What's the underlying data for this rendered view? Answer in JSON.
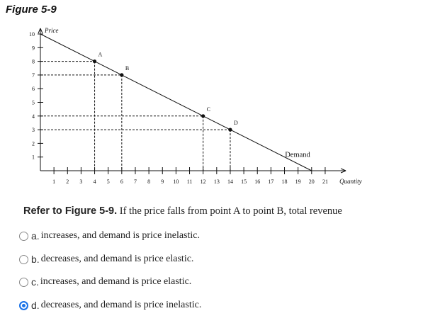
{
  "figure_title": "Figure 5-9",
  "chart_data": {
    "type": "line",
    "y_axis_label": "Price",
    "x_axis_label": "Quantity",
    "curve_label": "Demand",
    "xlim": [
      0,
      22
    ],
    "ylim": [
      0,
      10
    ],
    "x_ticks": [
      1,
      2,
      3,
      4,
      5,
      6,
      7,
      8,
      9,
      10,
      11,
      12,
      13,
      14,
      15,
      16,
      17,
      18,
      19,
      20,
      21
    ],
    "y_ticks": [
      1,
      2,
      3,
      4,
      5,
      6,
      7,
      8,
      9,
      10
    ],
    "demand_line": [
      {
        "x": 0,
        "y": 10
      },
      {
        "x": 20,
        "y": 0
      }
    ],
    "points": [
      {
        "label": "A",
        "x": 4,
        "y": 8
      },
      {
        "label": "B",
        "x": 6,
        "y": 7
      },
      {
        "label": "C",
        "x": 12,
        "y": 4
      },
      {
        "label": "D",
        "x": 14,
        "y": 3
      }
    ]
  },
  "question": {
    "lead": "Refer to Figure 5-9.",
    "body": " If the price falls from point A to point B, total revenue"
  },
  "options": [
    {
      "letter": "a.",
      "text": "increases, and demand is price inelastic.",
      "selected": false
    },
    {
      "letter": "b.",
      "text": "decreases, and demand is price elastic.",
      "selected": false
    },
    {
      "letter": "c.",
      "text": "increases, and demand is price elastic.",
      "selected": false
    },
    {
      "letter": "d.",
      "text": "decreases, and demand is price inelastic.",
      "selected": true
    }
  ]
}
